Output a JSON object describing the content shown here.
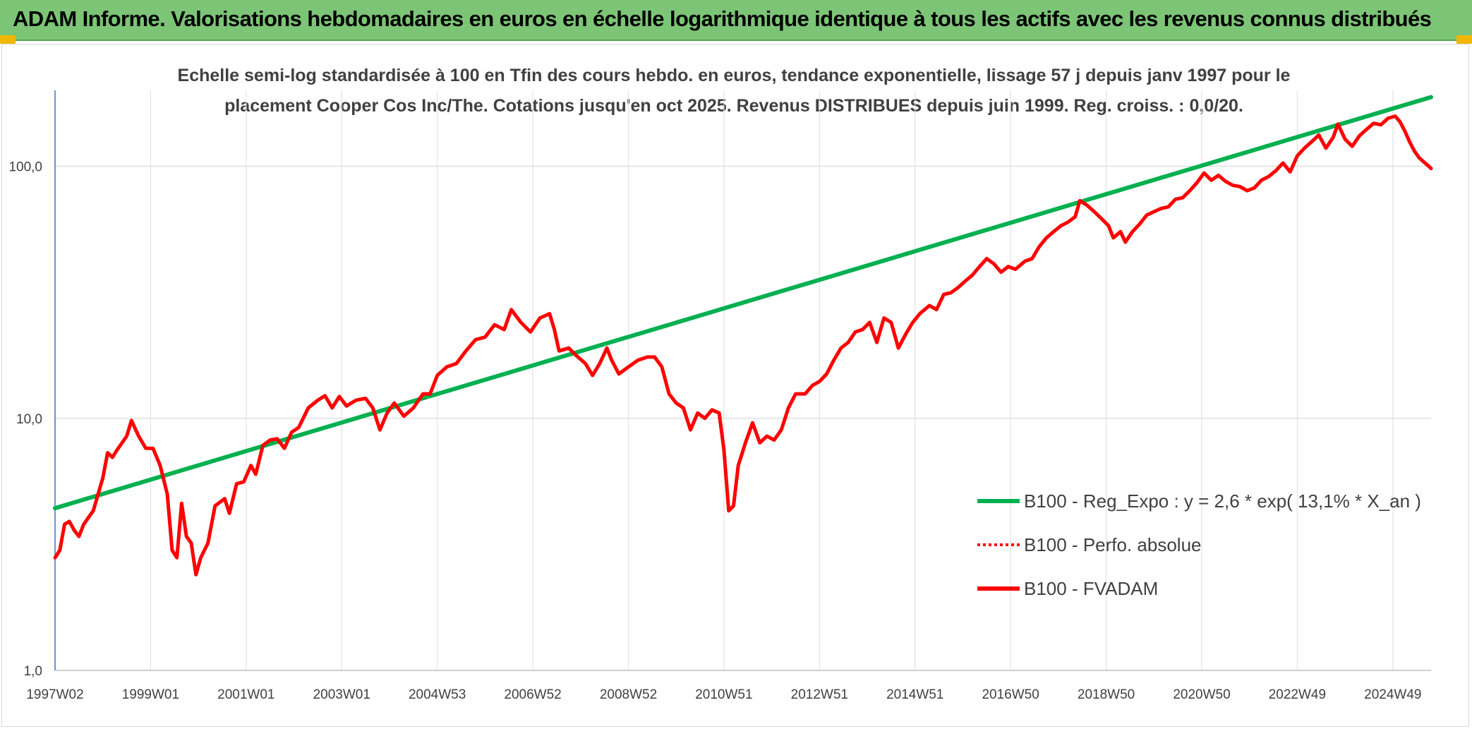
{
  "header": {
    "title": "ADAM Informe. Valorisations hebdomadaires en euros en échelle logarithmique identique à tous les actifs avec les revenus connus distribués"
  },
  "chart_data": {
    "type": "line",
    "subtitle_lines": [
      "Echelle semi-log standardisée à 100 en Tfin des cours hebdo. en euros, tendance exponentielle, lissage 57 j depuis janv 1997 pour le",
      "placement Cooper Cos Inc/The. Cotations jusqu'en oct 2025. Revenus DISTRIBUES depuis juin 1999. Reg. croiss. : 0,0/20."
    ],
    "y_scale": "log",
    "ylim": [
      1,
      200
    ],
    "y_ticks": [
      {
        "value": 1,
        "label": "1,0"
      },
      {
        "value": 10,
        "label": "10,0"
      },
      {
        "value": 100,
        "label": "100,0"
      }
    ],
    "xlim": [
      1997.0,
      2025.8
    ],
    "x_ticks": [
      {
        "x": 1997.0,
        "label": "1997W02"
      },
      {
        "x": 1999.0,
        "label": "1999W01"
      },
      {
        "x": 2001.0,
        "label": "2001W01"
      },
      {
        "x": 2003.0,
        "label": "2003W01"
      },
      {
        "x": 2005.0,
        "label": "2004W53"
      },
      {
        "x": 2007.0,
        "label": "2006W52"
      },
      {
        "x": 2009.0,
        "label": "2008W52"
      },
      {
        "x": 2011.0,
        "label": "2010W51"
      },
      {
        "x": 2013.0,
        "label": "2012W51"
      },
      {
        "x": 2015.0,
        "label": "2014W51"
      },
      {
        "x": 2017.0,
        "label": "2016W50"
      },
      {
        "x": 2019.0,
        "label": "2018W50"
      },
      {
        "x": 2021.0,
        "label": "2020W50"
      },
      {
        "x": 2023.0,
        "label": "2022W49"
      },
      {
        "x": 2025.0,
        "label": "2024W49"
      }
    ],
    "grid": "vertical and horizontal",
    "legend_position": "bottom-right",
    "series": [
      {
        "name": "B100 - Reg_Expo : y = 2,6 * exp( 13,1% *  X_an )",
        "color": "#00b050",
        "style": "solid",
        "points": [
          [
            1997.0,
            4.4
          ],
          [
            2025.8,
            188
          ]
        ]
      },
      {
        "name": "B100 - Perfo. absolue",
        "color": "#ff0000",
        "style": "dotted",
        "points": []
      },
      {
        "name": "B100 - FVADAM",
        "color": "#ff0000",
        "style": "solid",
        "points": [
          [
            1997.0,
            2.8
          ],
          [
            1997.1,
            3.0
          ],
          [
            1997.2,
            3.8
          ],
          [
            1997.3,
            3.9
          ],
          [
            1997.4,
            3.6
          ],
          [
            1997.5,
            3.4
          ],
          [
            1997.6,
            3.8
          ],
          [
            1997.8,
            4.3
          ],
          [
            1998.0,
            5.8
          ],
          [
            1998.1,
            7.3
          ],
          [
            1998.2,
            7.0
          ],
          [
            1998.3,
            7.5
          ],
          [
            1998.5,
            8.5
          ],
          [
            1998.6,
            9.8
          ],
          [
            1998.75,
            8.5
          ],
          [
            1998.9,
            7.6
          ],
          [
            1999.05,
            7.6
          ],
          [
            1999.2,
            6.5
          ],
          [
            1999.35,
            5.0
          ],
          [
            1999.45,
            3.0
          ],
          [
            1999.55,
            2.8
          ],
          [
            1999.65,
            4.6
          ],
          [
            1999.75,
            3.4
          ],
          [
            1999.85,
            3.2
          ],
          [
            1999.95,
            2.4
          ],
          [
            2000.05,
            2.8
          ],
          [
            2000.2,
            3.2
          ],
          [
            2000.35,
            4.5
          ],
          [
            2000.55,
            4.8
          ],
          [
            2000.65,
            4.2
          ],
          [
            2000.8,
            5.5
          ],
          [
            2000.95,
            5.6
          ],
          [
            2001.1,
            6.5
          ],
          [
            2001.2,
            6.0
          ],
          [
            2001.35,
            7.8
          ],
          [
            2001.5,
            8.2
          ],
          [
            2001.65,
            8.3
          ],
          [
            2001.8,
            7.6
          ],
          [
            2001.95,
            8.8
          ],
          [
            2002.1,
            9.2
          ],
          [
            2002.3,
            11.0
          ],
          [
            2002.5,
            11.8
          ],
          [
            2002.65,
            12.3
          ],
          [
            2002.8,
            11.0
          ],
          [
            2002.95,
            12.2
          ],
          [
            2003.1,
            11.2
          ],
          [
            2003.3,
            11.8
          ],
          [
            2003.5,
            12.0
          ],
          [
            2003.65,
            11.0
          ],
          [
            2003.8,
            9.0
          ],
          [
            2003.95,
            10.5
          ],
          [
            2004.1,
            11.5
          ],
          [
            2004.3,
            10.2
          ],
          [
            2004.5,
            11.0
          ],
          [
            2004.7,
            12.5
          ],
          [
            2004.85,
            12.5
          ],
          [
            2005.0,
            14.8
          ],
          [
            2005.2,
            16.0
          ],
          [
            2005.4,
            16.5
          ],
          [
            2005.6,
            18.5
          ],
          [
            2005.8,
            20.5
          ],
          [
            2006.0,
            21.0
          ],
          [
            2006.2,
            23.5
          ],
          [
            2006.4,
            22.5
          ],
          [
            2006.55,
            27.0
          ],
          [
            2006.75,
            24.0
          ],
          [
            2006.95,
            22.0
          ],
          [
            2007.15,
            25.0
          ],
          [
            2007.35,
            26.0
          ],
          [
            2007.45,
            22.5
          ],
          [
            2007.55,
            18.5
          ],
          [
            2007.75,
            19.0
          ],
          [
            2007.9,
            17.8
          ],
          [
            2008.1,
            16.5
          ],
          [
            2008.25,
            14.8
          ],
          [
            2008.4,
            16.5
          ],
          [
            2008.55,
            19.0
          ],
          [
            2008.65,
            17.0
          ],
          [
            2008.8,
            15.0
          ],
          [
            2009.0,
            16.0
          ],
          [
            2009.2,
            17.0
          ],
          [
            2009.4,
            17.5
          ],
          [
            2009.55,
            17.5
          ],
          [
            2009.7,
            16.0
          ],
          [
            2009.85,
            12.5
          ],
          [
            2010.0,
            11.5
          ],
          [
            2010.15,
            11.0
          ],
          [
            2010.3,
            9.0
          ],
          [
            2010.45,
            10.5
          ],
          [
            2010.6,
            10.0
          ],
          [
            2010.75,
            10.8
          ],
          [
            2010.9,
            10.5
          ],
          [
            2011.0,
            7.5
          ],
          [
            2011.1,
            4.3
          ],
          [
            2011.2,
            4.5
          ],
          [
            2011.3,
            6.5
          ],
          [
            2011.45,
            8.0
          ],
          [
            2011.6,
            9.6
          ],
          [
            2011.75,
            8.0
          ],
          [
            2011.9,
            8.5
          ],
          [
            2012.05,
            8.2
          ],
          [
            2012.2,
            9.0
          ],
          [
            2012.35,
            11.0
          ],
          [
            2012.5,
            12.5
          ],
          [
            2012.7,
            12.5
          ],
          [
            2012.85,
            13.5
          ],
          [
            2013.0,
            14.0
          ],
          [
            2013.15,
            15.0
          ],
          [
            2013.3,
            17.0
          ],
          [
            2013.45,
            19.0
          ],
          [
            2013.6,
            20.0
          ],
          [
            2013.75,
            22.0
          ],
          [
            2013.9,
            22.5
          ],
          [
            2014.05,
            24.0
          ],
          [
            2014.2,
            20.0
          ],
          [
            2014.35,
            25.0
          ],
          [
            2014.5,
            24.0
          ],
          [
            2014.65,
            19.0
          ],
          [
            2014.8,
            21.5
          ],
          [
            2014.95,
            24.0
          ],
          [
            2015.1,
            26.0
          ],
          [
            2015.3,
            28.0
          ],
          [
            2015.45,
            27.0
          ],
          [
            2015.6,
            31.0
          ],
          [
            2015.75,
            31.5
          ],
          [
            2015.9,
            33.0
          ],
          [
            2016.05,
            35.0
          ],
          [
            2016.2,
            37.0
          ],
          [
            2016.35,
            40.0
          ],
          [
            2016.5,
            43.0
          ],
          [
            2016.65,
            41.0
          ],
          [
            2016.8,
            38.0
          ],
          [
            2016.95,
            40.0
          ],
          [
            2017.1,
            39.0
          ],
          [
            2017.3,
            42.0
          ],
          [
            2017.45,
            43.0
          ],
          [
            2017.6,
            48.0
          ],
          [
            2017.75,
            52.0
          ],
          [
            2017.9,
            55.0
          ],
          [
            2018.05,
            58.0
          ],
          [
            2018.2,
            60.0
          ],
          [
            2018.35,
            63.0
          ],
          [
            2018.45,
            73.0
          ],
          [
            2018.6,
            70.0
          ],
          [
            2018.75,
            66.0
          ],
          [
            2018.9,
            62.0
          ],
          [
            2019.05,
            58.0
          ],
          [
            2019.15,
            52.0
          ],
          [
            2019.3,
            55.0
          ],
          [
            2019.4,
            50.0
          ],
          [
            2019.55,
            55.0
          ],
          [
            2019.7,
            59.0
          ],
          [
            2019.85,
            64.0
          ],
          [
            2020.0,
            66.0
          ],
          [
            2020.15,
            68.0
          ],
          [
            2020.3,
            69.0
          ],
          [
            2020.45,
            74.0
          ],
          [
            2020.6,
            75.0
          ],
          [
            2020.75,
            80.0
          ],
          [
            2020.9,
            86.0
          ],
          [
            2021.05,
            94.0
          ],
          [
            2021.2,
            88.0
          ],
          [
            2021.35,
            92.0
          ],
          [
            2021.5,
            87.0
          ],
          [
            2021.65,
            84.0
          ],
          [
            2021.8,
            83.0
          ],
          [
            2021.95,
            80.0
          ],
          [
            2022.1,
            82.0
          ],
          [
            2022.25,
            88.0
          ],
          [
            2022.4,
            91.0
          ],
          [
            2022.55,
            96.0
          ],
          [
            2022.7,
            103.0
          ],
          [
            2022.85,
            95.0
          ],
          [
            2023.0,
            110.0
          ],
          [
            2023.15,
            118.0
          ],
          [
            2023.3,
            125.0
          ],
          [
            2023.45,
            133.0
          ],
          [
            2023.6,
            118.0
          ],
          [
            2023.75,
            130.0
          ],
          [
            2023.85,
            147.0
          ],
          [
            2024.0,
            128.0
          ],
          [
            2024.15,
            120.0
          ],
          [
            2024.3,
            132.0
          ],
          [
            2024.45,
            140.0
          ],
          [
            2024.6,
            148.0
          ],
          [
            2024.75,
            146.0
          ],
          [
            2024.9,
            155.0
          ],
          [
            2025.05,
            158.0
          ],
          [
            2025.15,
            150.0
          ],
          [
            2025.25,
            138.0
          ],
          [
            2025.35,
            125.0
          ],
          [
            2025.45,
            115.0
          ],
          [
            2025.55,
            108.0
          ],
          [
            2025.65,
            104.0
          ],
          [
            2025.75,
            100.0
          ],
          [
            2025.8,
            98.0
          ]
        ]
      }
    ]
  }
}
